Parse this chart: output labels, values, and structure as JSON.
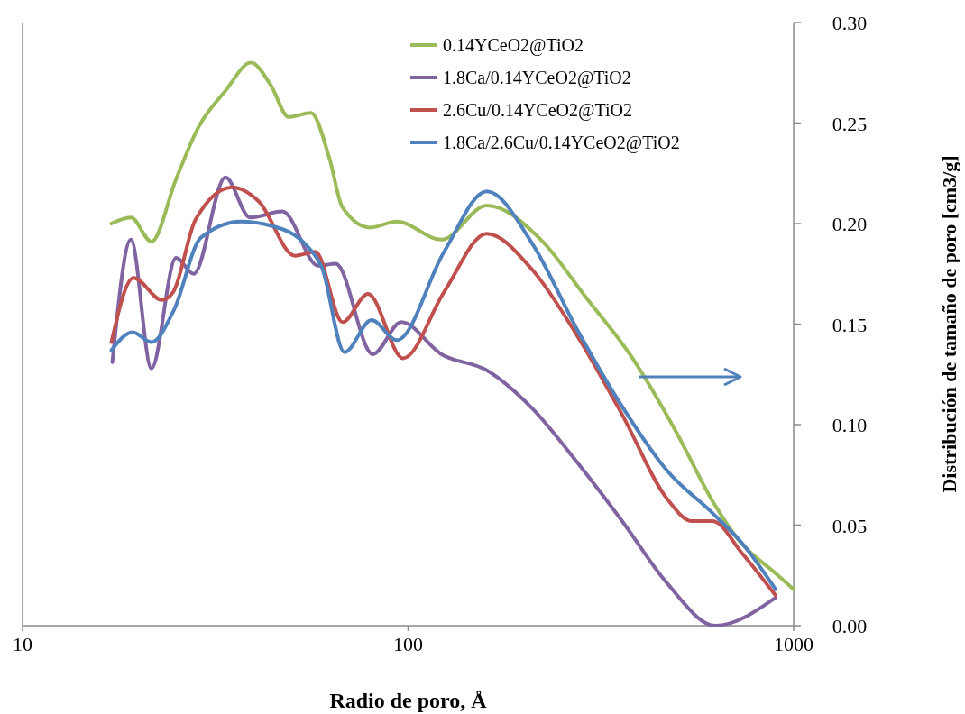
{
  "chart_data": {
    "type": "line",
    "xlabel": "Radio de poro, Å",
    "ylabel": "Distribución de tamaño de poro [cm3/g]",
    "log": "x",
    "xlim": [
      10,
      1000
    ],
    "xticks": [
      10,
      100,
      1000
    ],
    "ylim": [
      0,
      0.3
    ],
    "yticks": [
      {
        "value": 0,
        "label": "0.00"
      },
      {
        "value": 0.05,
        "label": "0.05"
      },
      {
        "value": 0.1,
        "label": "0.10"
      },
      {
        "value": 0.15,
        "label": "0.15"
      },
      {
        "value": 0.2,
        "label": "0.20"
      },
      {
        "value": 0.25,
        "label": "0.25"
      },
      {
        "value": 0.3,
        "label": "0.30"
      }
    ],
    "grid": false,
    "legend": "top right",
    "marker": "none",
    "line_style": "solid",
    "series": [
      {
        "name": "0.14YCeO2@TiO2",
        "color": "#9bbb59",
        "x": [
          17.0,
          19.1,
          21.6,
          25.0,
          28.6,
          33.6,
          39.1,
          44.0,
          49.0,
          56.0,
          62.4,
          67.6,
          79.6,
          93.5,
          122,
          160,
          221,
          290,
          379,
          497,
          616,
          724,
          898,
          1000
        ],
        "values": [
          0.2,
          0.203,
          0.191,
          0.222,
          0.248,
          0.266,
          0.28,
          0.269,
          0.253,
          0.255,
          0.233,
          0.208,
          0.198,
          0.201,
          0.192,
          0.209,
          0.192,
          0.163,
          0.134,
          0.096,
          0.062,
          0.042,
          0.026,
          0.018
        ]
      },
      {
        "name": "1.8Ca/0.14YCeO2@TiO2",
        "color": "#8064a2",
        "x": [
          17.1,
          19.1,
          21.6,
          25.0,
          27.8,
          33.6,
          38.9,
          47.2,
          58.5,
          64.9,
          81.0,
          96.0,
          122,
          160,
          210,
          275,
          359,
          470,
          626,
          898
        ],
        "values": [
          0.131,
          0.192,
          0.128,
          0.183,
          0.175,
          0.223,
          0.203,
          0.206,
          0.179,
          0.18,
          0.135,
          0.151,
          0.135,
          0.127,
          0.108,
          0.081,
          0.052,
          0.021,
          0.0,
          0.014
        ]
      },
      {
        "name": "2.6Cu/0.14YCeO2@TiO2",
        "color": "#c0504d",
        "x": [
          17.0,
          19.4,
          23.0,
          24.6,
          28.1,
          34.9,
          41.0,
          50.9,
          57.5,
          67.6,
          78.7,
          97.1,
          124,
          160,
          210,
          275,
          359,
          470,
          544,
          616,
          735,
          898
        ],
        "values": [
          0.141,
          0.173,
          0.162,
          0.166,
          0.202,
          0.218,
          0.211,
          0.184,
          0.186,
          0.151,
          0.165,
          0.133,
          0.166,
          0.195,
          0.177,
          0.144,
          0.105,
          0.063,
          0.052,
          0.052,
          0.036,
          0.015
        ]
      },
      {
        "name": "1.8Ca/2.6Cu/0.14YCeO2@TiO2",
        "color": "#4f81bd",
        "x": [
          17.0,
          19.3,
          21.6,
          24.7,
          29.0,
          36.8,
          44.0,
          54.6,
          59.8,
          68.4,
          80.4,
          93.5,
          124,
          160,
          210,
          275,
          359,
          470,
          616,
          735,
          898
        ],
        "values": [
          0.137,
          0.146,
          0.141,
          0.157,
          0.193,
          0.201,
          0.199,
          0.189,
          0.178,
          0.136,
          0.152,
          0.142,
          0.186,
          0.216,
          0.19,
          0.147,
          0.109,
          0.077,
          0.056,
          0.041,
          0.018
        ]
      }
    ]
  }
}
